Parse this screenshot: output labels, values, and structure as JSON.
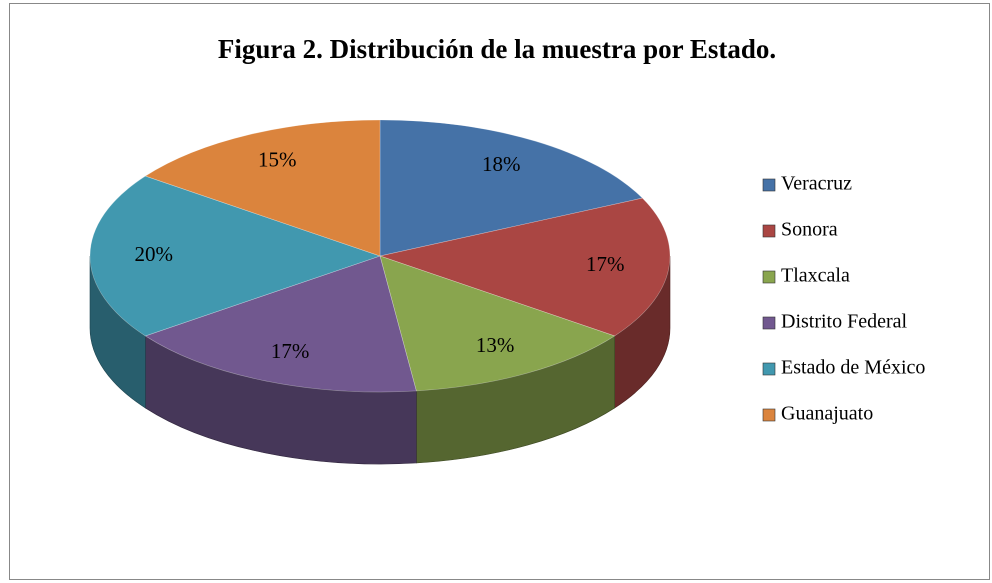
{
  "chart_data": {
    "type": "pie",
    "title": "Figura 2. Distribución de la muestra por Estado.",
    "categories": [
      "Veracruz",
      "Sonora",
      "Tlaxcala",
      "Distrito Federal",
      "Estado de México",
      "Guanajuato"
    ],
    "values": [
      18,
      17,
      13,
      17,
      20,
      15
    ],
    "value_labels": [
      "18%",
      "17%",
      "13%",
      "17%",
      "20%",
      "15%"
    ],
    "colors": [
      "#4572a7",
      "#aa4643",
      "#89a54e",
      "#71588f",
      "#4198af",
      "#db843d"
    ],
    "legend": "right"
  }
}
